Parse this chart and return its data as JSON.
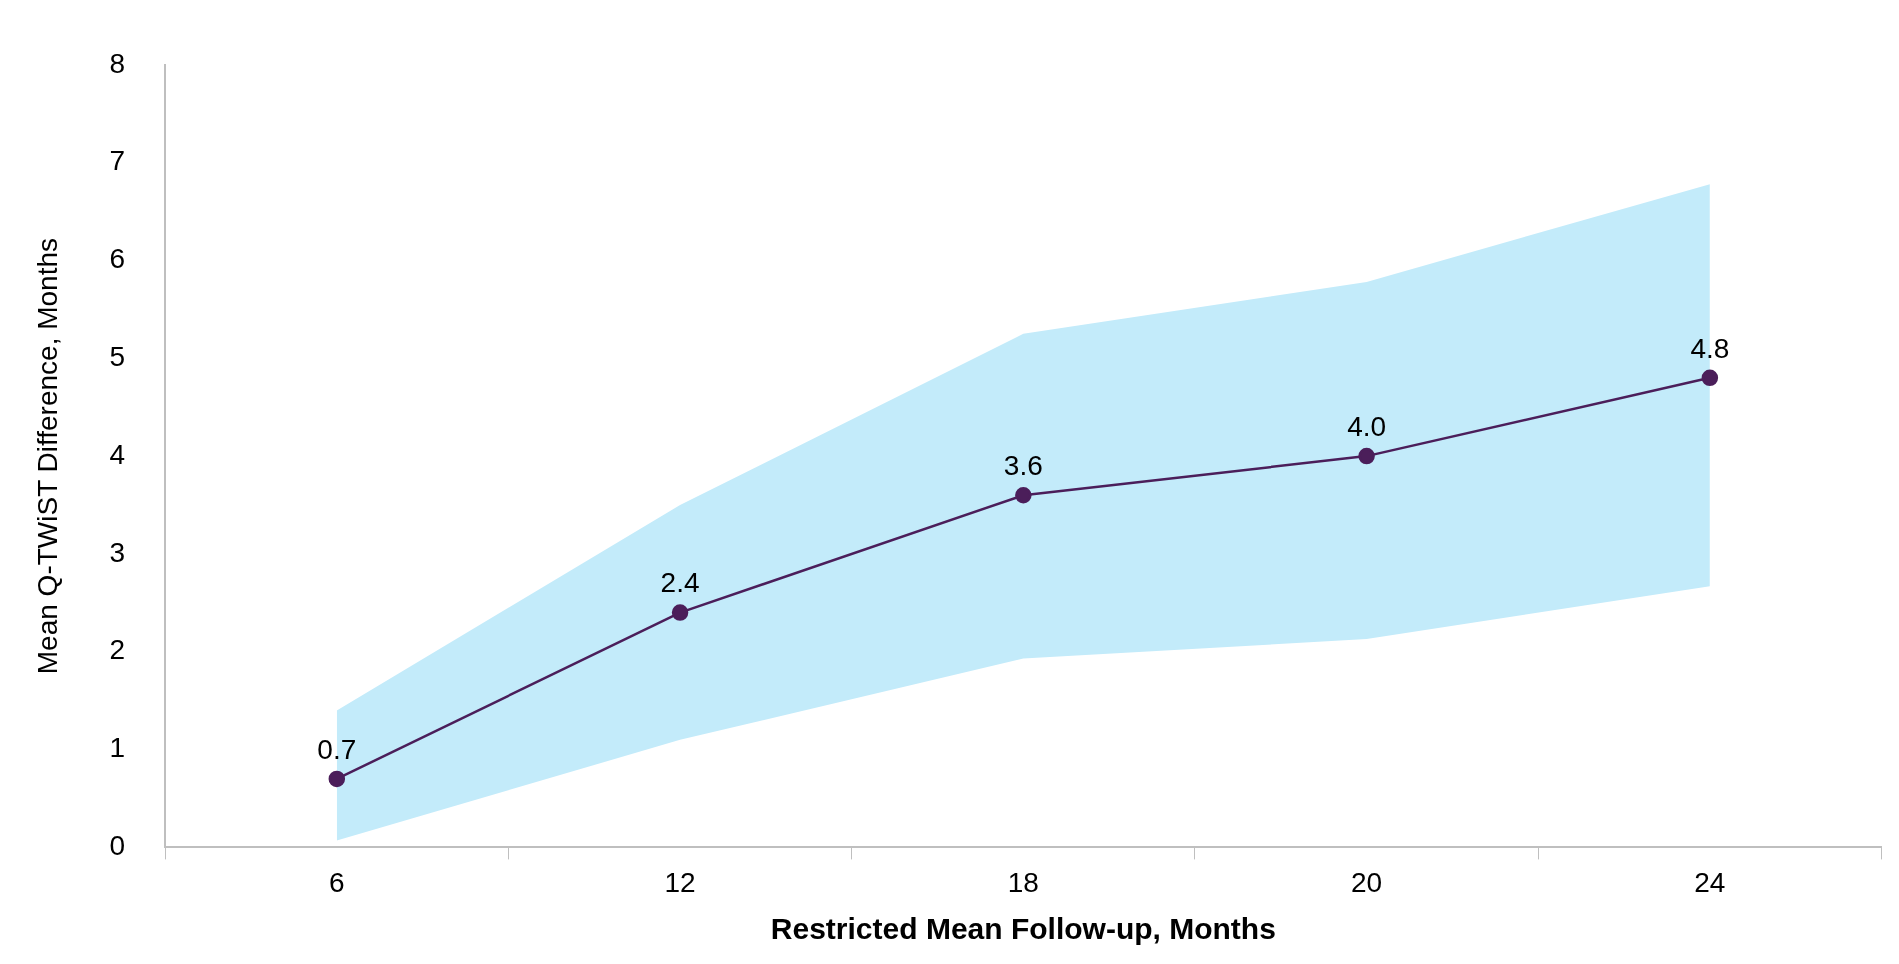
{
  "chart_data": {
    "type": "line",
    "xlabel": "Restricted Mean Follow-up, Months",
    "ylabel": "Mean Q-TWiST Difference, Months",
    "categories": [
      "6",
      "12",
      "18",
      "20",
      "24"
    ],
    "series": [
      {
        "color": "#4b1e5a",
        "values": [
          0.7,
          2.4,
          3.6,
          4.0,
          4.8
        ],
        "value_labels": [
          "0.7",
          "2.4",
          "3.6",
          "4.0",
          "4.8"
        ],
        "lower": [
          0.07,
          1.1,
          1.93,
          2.13,
          2.67
        ],
        "upper": [
          1.4,
          3.5,
          5.25,
          5.78,
          6.78
        ]
      }
    ],
    "ylim": [
      0,
      8
    ],
    "yticks": [
      0,
      1,
      2,
      3,
      4,
      5,
      6,
      7,
      8
    ],
    "marker": "circle",
    "line_style": "solid",
    "grid": false,
    "legend": false
  }
}
